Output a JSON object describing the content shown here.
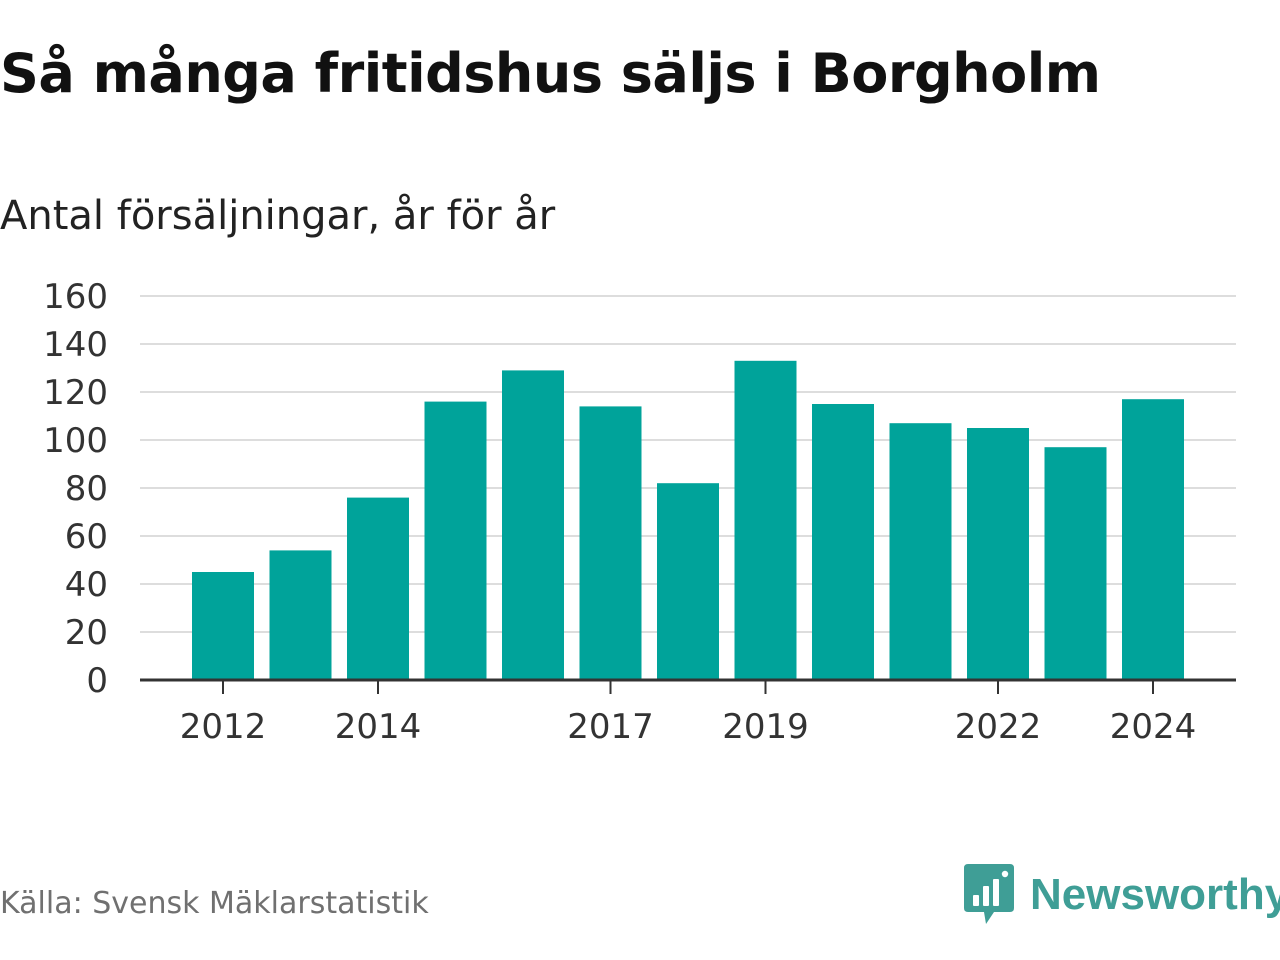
{
  "header": {
    "title": "Så många fritidshus säljs i Borgholm",
    "subtitle": "Antal försäljningar, år för år"
  },
  "footer": {
    "source": "Källa: Svensk Mäklarstatistik",
    "brand_name": "Newsworthy",
    "brand_icon": "newsworthy-logo-icon"
  },
  "colors": {
    "bar": "#00a39a",
    "grid": "#dddddd",
    "axis": "#333333",
    "brand": "#3f9e96"
  },
  "chart_data": {
    "type": "bar",
    "title": "Så många fritidshus säljs i Borgholm",
    "subtitle": "Antal försäljningar, år för år",
    "xlabel": "",
    "ylabel": "",
    "categories": [
      2012,
      2013,
      2014,
      2015,
      2016,
      2017,
      2018,
      2019,
      2020,
      2021,
      2022,
      2023,
      2024
    ],
    "values": [
      45,
      54,
      76,
      116,
      129,
      114,
      82,
      133,
      115,
      107,
      105,
      97,
      117
    ],
    "x_tick_labels": [
      "2012",
      "2014",
      "2017",
      "2019",
      "2022",
      "2024"
    ],
    "y_ticks": [
      0,
      20,
      40,
      60,
      80,
      100,
      120,
      140,
      160
    ],
    "ylim": [
      0,
      160
    ],
    "grid": true,
    "legend": "none"
  }
}
